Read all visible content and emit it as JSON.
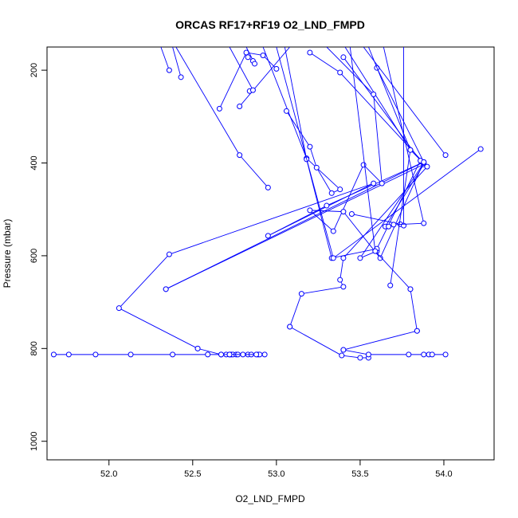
{
  "chart_data": {
    "type": "line",
    "title": "ORCAS RF17+RF19 O2_LND_FMPD",
    "xlabel": "O2_LND_FMPD",
    "ylabel": "Pressure (mbar)",
    "xlim": [
      51.63,
      54.3
    ],
    "ylim": [
      1040,
      150
    ],
    "y_reversed": true,
    "x_ticks": [
      52.0,
      52.5,
      53.0,
      53.5,
      54.0
    ],
    "x_tick_labels": [
      "52.0",
      "52.5",
      "53.0",
      "53.5",
      "54.0"
    ],
    "y_ticks": [
      200,
      400,
      600,
      800,
      1000
    ],
    "y_tick_labels": [
      "200",
      "400",
      "600",
      "800",
      "1000"
    ],
    "grid": false,
    "legend": "none",
    "series_color": "#0000ff",
    "series": [
      {
        "points": [
          [
            51.67,
            813
          ],
          [
            51.76,
            813
          ],
          [
            51.92,
            813
          ],
          [
            52.13,
            813
          ],
          [
            52.38,
            813
          ],
          [
            52.59,
            813
          ],
          [
            52.67,
            813
          ],
          [
            52.7,
            813
          ],
          [
            52.72,
            813
          ],
          [
            52.73,
            813
          ],
          [
            52.74,
            813
          ],
          [
            52.76,
            813
          ],
          [
            52.77,
            813
          ],
          [
            52.83,
            813
          ],
          [
            52.85,
            813
          ],
          [
            52.89,
            813
          ],
          [
            52.9,
            813
          ],
          [
            52.93,
            813
          ]
        ]
      },
      {
        "points": [
          [
            52.53,
            800
          ],
          [
            52.67,
            813
          ],
          [
            52.72,
            813
          ],
          [
            52.8,
            813
          ],
          [
            52.88,
            813
          ]
        ]
      },
      {
        "points": [
          [
            52.36,
            200
          ],
          [
            52.31,
            150
          ]
        ]
      },
      {
        "points": [
          [
            52.43,
            215
          ],
          [
            52.38,
            150
          ]
        ]
      },
      {
        "points": [
          [
            52.34,
            672
          ],
          [
            53.88,
            398
          ],
          [
            53.3,
            492
          ],
          [
            52.95,
            557
          ],
          [
            53.58,
            444
          ],
          [
            52.36,
            597
          ],
          [
            52.06,
            713
          ],
          [
            52.53,
            800
          ]
        ]
      },
      {
        "points": [
          [
            52.34,
            672
          ],
          [
            53.88,
            403
          ],
          [
            53.65,
            537
          ]
        ]
      },
      {
        "points": [
          [
            52.95,
            453
          ],
          [
            52.78,
            383
          ],
          [
            52.4,
            150
          ]
        ]
      },
      {
        "points": [
          [
            52.66,
            283
          ],
          [
            52.82,
            162
          ],
          [
            52.92,
            168
          ],
          [
            53.0,
            197
          ]
        ]
      },
      {
        "points": [
          [
            52.78,
            278
          ],
          [
            53.08,
            150
          ]
        ]
      },
      {
        "points": [
          [
            52.84,
            245
          ],
          [
            52.86,
            243
          ],
          [
            52.72,
            150
          ]
        ]
      },
      {
        "points": [
          [
            52.83,
            172
          ],
          [
            52.86,
            180
          ],
          [
            52.87,
            186
          ],
          [
            52.82,
            150
          ]
        ]
      },
      {
        "points": [
          [
            53.08,
            753
          ],
          [
            53.15,
            682
          ],
          [
            53.4,
            667
          ],
          [
            53.38,
            652
          ],
          [
            53.4,
            605
          ],
          [
            53.9,
            408
          ],
          [
            53.8,
            372
          ],
          [
            53.41,
            150
          ]
        ]
      },
      {
        "points": [
          [
            53.08,
            753
          ],
          [
            53.39,
            815
          ],
          [
            53.5,
            820
          ],
          [
            53.55,
            820
          ]
        ]
      },
      {
        "points": [
          [
            53.06,
            288
          ],
          [
            53.2,
            365
          ],
          [
            53.24,
            410
          ],
          [
            53.33,
            465
          ],
          [
            53.38,
            457
          ],
          [
            53.18,
            390
          ],
          [
            52.92,
            150
          ]
        ]
      },
      {
        "points": [
          [
            53.2,
            162
          ],
          [
            53.38,
            205
          ],
          [
            53.88,
            400
          ],
          [
            53.5,
            605
          ],
          [
            53.6,
            590
          ]
        ]
      },
      {
        "points": [
          [
            53.4,
            172
          ],
          [
            53.86,
            395
          ],
          [
            53.6,
            585
          ],
          [
            53.33,
            605
          ],
          [
            53.18,
            392
          ],
          [
            53.05,
            150
          ]
        ]
      },
      {
        "points": [
          [
            53.6,
            195
          ],
          [
            53.88,
            398
          ],
          [
            53.62,
            605
          ],
          [
            53.4,
            505
          ],
          [
            53.2,
            502
          ],
          [
            53.34,
            547
          ],
          [
            53.52,
            404
          ],
          [
            53.63,
            444
          ],
          [
            53.58,
            252
          ],
          [
            53.3,
            150
          ]
        ]
      },
      {
        "points": [
          [
            54.01,
            383
          ],
          [
            53.52,
            150
          ]
        ]
      },
      {
        "points": [
          [
            54.22,
            370
          ],
          [
            53.34,
            605
          ],
          [
            53.0,
            150
          ]
        ]
      },
      {
        "points": [
          [
            53.45,
            510
          ],
          [
            53.74,
            532
          ],
          [
            53.76,
            535
          ],
          [
            53.76,
            150
          ]
        ]
      },
      {
        "points": [
          [
            53.67,
            537
          ],
          [
            53.7,
            533
          ],
          [
            53.88,
            530
          ],
          [
            53.64,
            150
          ]
        ]
      },
      {
        "points": [
          [
            53.68,
            664
          ],
          [
            53.8,
            372
          ],
          [
            53.55,
            150
          ]
        ]
      },
      {
        "points": [
          [
            53.8,
            672
          ],
          [
            53.59,
            590
          ],
          [
            53.44,
            150
          ]
        ]
      },
      {
        "points": [
          [
            53.84,
            762
          ],
          [
            53.8,
            672
          ]
        ]
      },
      {
        "points": [
          [
            53.4,
            803
          ],
          [
            53.84,
            762
          ]
        ]
      },
      {
        "points": [
          [
            53.4,
            803
          ],
          [
            53.55,
            813
          ],
          [
            53.79,
            813
          ],
          [
            53.88,
            813
          ],
          [
            53.91,
            813
          ],
          [
            53.93,
            813
          ],
          [
            54.01,
            813
          ]
        ]
      }
    ]
  }
}
